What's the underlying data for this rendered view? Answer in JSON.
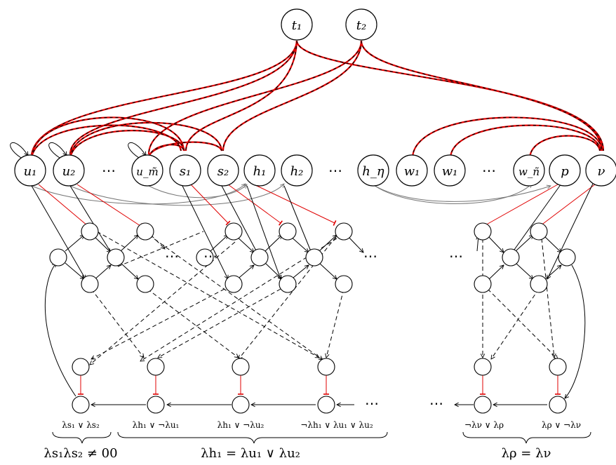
{
  "nodes": {
    "t1": "t₁",
    "t2": "t₂",
    "u1": "u₁",
    "u2": "u₂",
    "u_m": "u_m̃",
    "s1": "s₁",
    "s2": "s₂",
    "h1": "h₁",
    "h2": "h₂",
    "h_eta": "h_η",
    "w1a": "w₁",
    "w1b": "w₁",
    "w_n": "w_ñ",
    "p": "p",
    "nu": "ν"
  },
  "ellipsis": "⋯",
  "clause_labels": {
    "c1": "λs₁ ∨ λs₂",
    "c2": "λh₁ ∨ ¬λu₁",
    "c3": "λh₁ ∨ ¬λu₂",
    "c4": "¬λh₁ ∨ λu₁ ∨ λu₂",
    "c5": "¬λν ∨ λρ",
    "c6": "λρ ∨ ¬λν"
  },
  "group_labels": {
    "g1": "λs₁λs₂ ≠ 00",
    "g2": "λh₁ = λu₁ ∨ λu₂",
    "g3": "λρ = λν"
  },
  "colors": {
    "inhibit": "#e00000",
    "neutral": "#777777",
    "ink": "#000000"
  }
}
